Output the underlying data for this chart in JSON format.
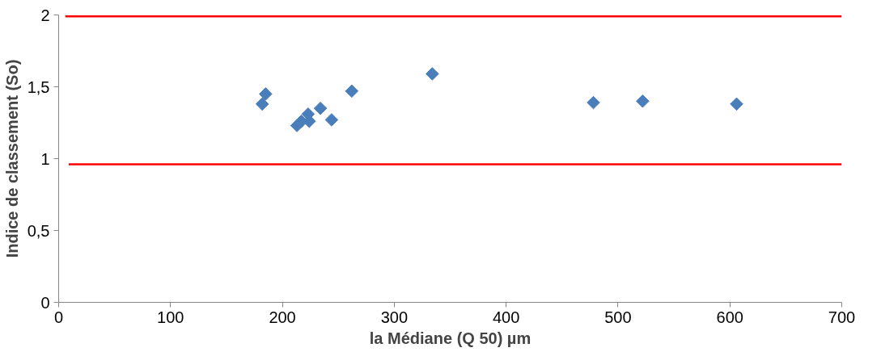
{
  "chart_data": {
    "type": "scatter",
    "xlabel": "la Médiane (Q 50) µm",
    "ylabel": "Indice de classement (So)",
    "xlim": [
      0,
      700
    ],
    "ylim": [
      0,
      2
    ],
    "xticks": [
      0,
      100,
      200,
      300,
      400,
      500,
      600,
      700
    ],
    "yticks": [
      {
        "value": 0,
        "label": "0"
      },
      {
        "value": 0.5,
        "label": "0,5"
      },
      {
        "value": 1,
        "label": "1"
      },
      {
        "value": 1.5,
        "label": "1,5"
      },
      {
        "value": 2,
        "label": "2"
      }
    ],
    "grid": false,
    "series": [
      {
        "marker": "diamond",
        "color": "#4a7ebb",
        "x": [
          182,
          185,
          213,
          217,
          223,
          224,
          234,
          244,
          262,
          334,
          478,
          522,
          606
        ],
        "values": [
          1.38,
          1.45,
          1.23,
          1.26,
          1.31,
          1.26,
          1.35,
          1.27,
          1.47,
          1.59,
          1.39,
          1.4,
          1.38
        ]
      },
      {
        "type": "line",
        "marker": "none",
        "color": "#ff0000",
        "x": [
          6,
          700
        ],
        "values": [
          1.99,
          1.99
        ]
      },
      {
        "type": "line",
        "marker": "none",
        "color": "#ff0000",
        "x": [
          9,
          700
        ],
        "values": [
          0.96,
          0.96
        ]
      }
    ]
  }
}
